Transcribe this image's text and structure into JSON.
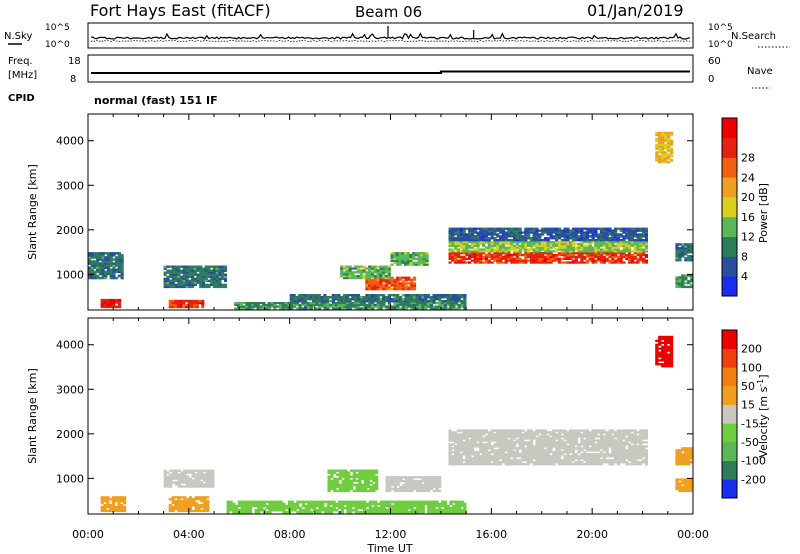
{
  "header": {
    "station": "Fort Hays East (fitACF)",
    "beam": "Beam 06",
    "date": "01/Jan/2019"
  },
  "sky_panel": {
    "left_label": "N.Sky",
    "right_label": "N.Search",
    "tick_top": "10^5",
    "tick_bottom": "10^0"
  },
  "freq_panel": {
    "left_label_1": "Freq.",
    "left_label_2": "[MHz]",
    "right_label": "Nave",
    "left_tick_top": "18",
    "left_tick_bottom": "8",
    "right_tick_top": "60",
    "right_tick_bottom": "0",
    "cpid_label": "CPID",
    "cpid_text": "normal (fast) 151 IF"
  },
  "chart_data": [
    {
      "type": "heatmap",
      "name": "power",
      "xlabel": "Time UT",
      "ylabel": "Slant Range [km]",
      "x_ticks": [
        "00:00",
        "04:00",
        "08:00",
        "12:00",
        "16:00",
        "20:00",
        "00:00"
      ],
      "y_ticks": [
        1000,
        2000,
        3000,
        4000
      ],
      "ylim": [
        200,
        4600
      ],
      "colorbar": {
        "label": "Power [dB]",
        "ticks": [
          "4",
          "8",
          "12",
          "16",
          "20",
          "24",
          "28"
        ],
        "colors": [
          "#1a2cf0",
          "#2a4fa0",
          "#2e7d5a",
          "#5ab85a",
          "#d8d020",
          "#f0a020",
          "#f06010",
          "#e82010",
          "#ee0000"
        ]
      },
      "patches": [
        {
          "t": [
            0.5,
            1.3
          ],
          "r": [
            250,
            450
          ],
          "v": 28
        },
        {
          "t": [
            3.2,
            4.6
          ],
          "r": [
            250,
            430
          ],
          "v": 26
        },
        {
          "t": [
            0.0,
            1.4
          ],
          "r": [
            900,
            1500
          ],
          "v": 8
        },
        {
          "t": [
            3.0,
            5.5
          ],
          "r": [
            700,
            1200
          ],
          "v": 8
        },
        {
          "t": [
            5.8,
            15.0
          ],
          "r": [
            220,
            380
          ],
          "v": 10
        },
        {
          "t": [
            8.0,
            15.0
          ],
          "r": [
            380,
            560
          ],
          "v": 8
        },
        {
          "t": [
            11.0,
            13.0
          ],
          "r": [
            650,
            950
          ],
          "v": 24
        },
        {
          "t": [
            10.0,
            12.0
          ],
          "r": [
            900,
            1200
          ],
          "v": 12
        },
        {
          "t": [
            12.0,
            13.5
          ],
          "r": [
            1200,
            1500
          ],
          "v": 12
        },
        {
          "t": [
            14.3,
            22.2
          ],
          "r": [
            1250,
            1500
          ],
          "v": 26
        },
        {
          "t": [
            14.3,
            22.2
          ],
          "r": [
            1500,
            1750
          ],
          "v": 14
        },
        {
          "t": [
            14.3,
            22.2
          ],
          "r": [
            1750,
            2050
          ],
          "v": 6
        },
        {
          "t": [
            22.5,
            23.2
          ],
          "r": [
            3500,
            4200
          ],
          "v": 18
        },
        {
          "t": [
            23.3,
            24.0
          ],
          "r": [
            700,
            1000
          ],
          "v": 10
        },
        {
          "t": [
            23.3,
            24.0
          ],
          "r": [
            1300,
            1700
          ],
          "v": 8
        }
      ]
    },
    {
      "type": "heatmap",
      "name": "velocity",
      "xlabel": "Time UT",
      "ylabel": "Slant Range [km]",
      "x_ticks": [
        "00:00",
        "04:00",
        "08:00",
        "12:00",
        "16:00",
        "20:00",
        "00:00"
      ],
      "y_ticks": [
        1000,
        2000,
        3000,
        4000
      ],
      "ylim": [
        200,
        4600
      ],
      "colorbar": {
        "label": "Velocity [m s^-1]",
        "ticks": [
          "200",
          "100",
          "50",
          "15",
          "-15",
          "-50",
          "-100",
          "-200"
        ],
        "colors": [
          "#1a2cf0",
          "#2e7d5a",
          "#5ab85a",
          "#6fce40",
          "#c8c8c0",
          "#f0a020",
          "#f08010",
          "#f04010",
          "#ee0000"
        ]
      },
      "patches": [
        {
          "t": [
            0.5,
            1.5
          ],
          "r": [
            250,
            600
          ],
          "v": 40
        },
        {
          "t": [
            3.2,
            4.8
          ],
          "r": [
            250,
            600
          ],
          "v": 40
        },
        {
          "t": [
            3.0,
            5.0
          ],
          "r": [
            800,
            1200
          ],
          "v": 0
        },
        {
          "t": [
            5.5,
            15.0
          ],
          "r": [
            220,
            500
          ],
          "v": -40
        },
        {
          "t": [
            9.5,
            11.5
          ],
          "r": [
            700,
            1200
          ],
          "v": -60
        },
        {
          "t": [
            11.8,
            14.0
          ],
          "r": [
            700,
            1050
          ],
          "v": 0
        },
        {
          "t": [
            14.3,
            22.2
          ],
          "r": [
            1300,
            2100
          ],
          "v": 0
        },
        {
          "t": [
            22.5,
            23.2
          ],
          "r": [
            3500,
            4200
          ],
          "v": 220
        },
        {
          "t": [
            23.3,
            24.0
          ],
          "r": [
            700,
            1000
          ],
          "v": 40
        },
        {
          "t": [
            23.3,
            24.0
          ],
          "r": [
            1300,
            1700
          ],
          "v": 40
        }
      ]
    }
  ]
}
